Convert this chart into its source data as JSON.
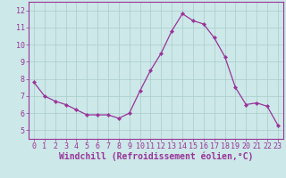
{
  "x": [
    0,
    1,
    2,
    3,
    4,
    5,
    6,
    7,
    8,
    9,
    10,
    11,
    12,
    13,
    14,
    15,
    16,
    17,
    18,
    19,
    20,
    21,
    22,
    23
  ],
  "y": [
    7.8,
    7.0,
    6.7,
    6.5,
    6.2,
    5.9,
    5.9,
    5.9,
    5.7,
    6.0,
    7.3,
    8.5,
    9.5,
    10.8,
    11.8,
    11.4,
    11.2,
    10.4,
    9.3,
    7.5,
    6.5,
    6.6,
    6.4,
    5.3
  ],
  "line_color": "#993399",
  "marker_color": "#993399",
  "bg_color": "#cce8e8",
  "grid_color": "#aacccc",
  "xlabel": "Windchill (Refroidissement éolien,°C)",
  "xlim": [
    -0.5,
    23.5
  ],
  "ylim": [
    4.5,
    12.5
  ],
  "yticks": [
    5,
    6,
    7,
    8,
    9,
    10,
    11,
    12
  ],
  "xticks": [
    0,
    1,
    2,
    3,
    4,
    5,
    6,
    7,
    8,
    9,
    10,
    11,
    12,
    13,
    14,
    15,
    16,
    17,
    18,
    19,
    20,
    21,
    22,
    23
  ],
  "tick_label_color": "#993399",
  "tick_label_fontsize": 6.0,
  "xlabel_color": "#993399",
  "xlabel_fontsize": 7.0,
  "spine_color": "#993399",
  "fig_bg": "#cce8e8"
}
